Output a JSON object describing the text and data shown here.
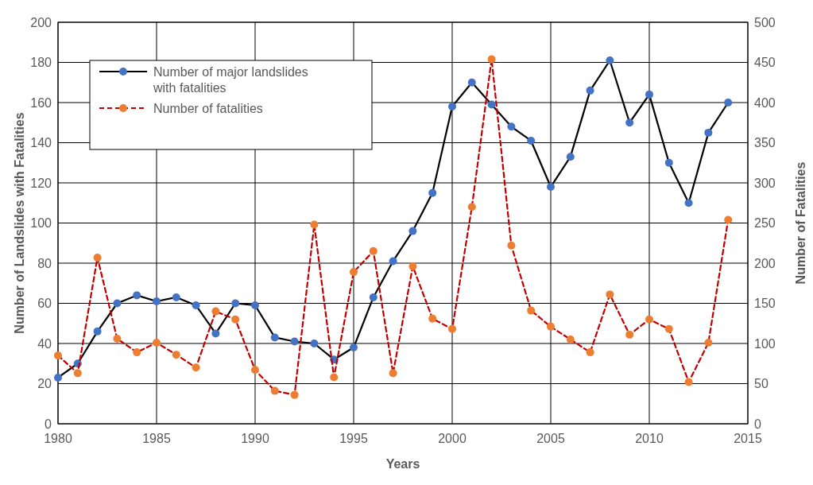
{
  "chart_data": {
    "type": "line",
    "xlabel": "Years",
    "ylabel": "Number of Landslides with Fatalities",
    "y2label": "Number of Fatalities",
    "x": [
      1980,
      1981,
      1982,
      1983,
      1984,
      1985,
      1986,
      1987,
      1988,
      1989,
      1990,
      1991,
      1992,
      1993,
      1994,
      1995,
      1996,
      1997,
      1998,
      1999,
      2000,
      2001,
      2002,
      2003,
      2004,
      2005,
      2006,
      2007,
      2008,
      2009,
      2010,
      2011,
      2012,
      2013,
      2014
    ],
    "series": [
      {
        "name": "Number of major landslides with fatalities",
        "color": "#000000",
        "line_style": "solid",
        "colors": [
          "#4472c4",
          "#4472c4",
          "#4472c4",
          "#4472c4",
          "#4472c4",
          "#4472c4",
          "#4472c4",
          "#4472c4",
          "#4472c4",
          "#4472c4",
          "#4472c4",
          "#4472c4",
          "#4472c4",
          "#4472c4",
          "#4472c4",
          "#4472c4",
          "#4472c4",
          "#4472c4",
          "#4472c4",
          "#4472c4",
          "#4472c4",
          "#4472c4",
          "#4472c4",
          "#4472c4",
          "#4472c4",
          "#4472c4",
          "#4472c4",
          "#4472c4",
          "#4472c4",
          "#4472c4",
          "#4472c4",
          "#4472c4",
          "#4472c4",
          "#4472c4",
          "#4472c4"
        ],
        "values": [
          23,
          30,
          46,
          60,
          64,
          61,
          63,
          59,
          45,
          60,
          59,
          43,
          41,
          40,
          32,
          38,
          63,
          81,
          96,
          115,
          158,
          170,
          159,
          148,
          141,
          118,
          133,
          166,
          181,
          150,
          164,
          130,
          110,
          145,
          160
        ]
      },
      {
        "name": "Number of fatalities",
        "color": "#c00000",
        "line_style": "dashed",
        "colors": [
          "#ed7d31",
          "#ed7d31",
          "#ed7d31",
          "#ed7d31",
          "#ed7d31",
          "#ed7d31",
          "#ed7d31",
          "#ed7d31",
          "#ed7d31",
          "#ed7d31",
          "#ed7d31",
          "#ed7d31",
          "#ed7d31",
          "#ed7d31",
          "#ed7d31",
          "#ed7d31",
          "#ed7d31",
          "#ed7d31",
          "#ed7d31",
          "#ed7d31",
          "#ed7d31",
          "#ed7d31",
          "#ed7d31",
          "#ed7d31",
          "#ed7d31",
          "#ed7d31",
          "#ed7d31",
          "#ed7d31",
          "#ed7d31",
          "#ed7d31",
          "#ed7d31",
          "#ed7d31",
          "#ed7d31",
          "#ed7d31",
          "#ed7d31"
        ],
        "axis": "y2",
        "values": [
          85,
          63,
          207,
          106,
          89,
          101,
          86,
          70,
          140,
          130,
          67,
          41,
          36,
          248,
          58,
          189,
          215,
          63,
          196,
          131,
          118,
          270,
          454,
          222,
          141,
          121,
          105,
          89,
          161,
          111,
          130,
          118,
          52,
          101,
          254
        ]
      }
    ],
    "xlim": [
      1980,
      2015
    ],
    "xticks": [
      1980,
      1985,
      1990,
      1995,
      2000,
      2005,
      2010,
      2015
    ],
    "ylim": [
      0,
      200
    ],
    "yticks": [
      0,
      20,
      40,
      60,
      80,
      100,
      120,
      140,
      160,
      180,
      200
    ],
    "y2lim": [
      0,
      500
    ],
    "y2ticks": [
      0,
      50,
      100,
      150,
      200,
      250,
      300,
      350,
      400,
      450,
      500
    ],
    "grid": true,
    "legend": "top left",
    "marker": "circle"
  }
}
